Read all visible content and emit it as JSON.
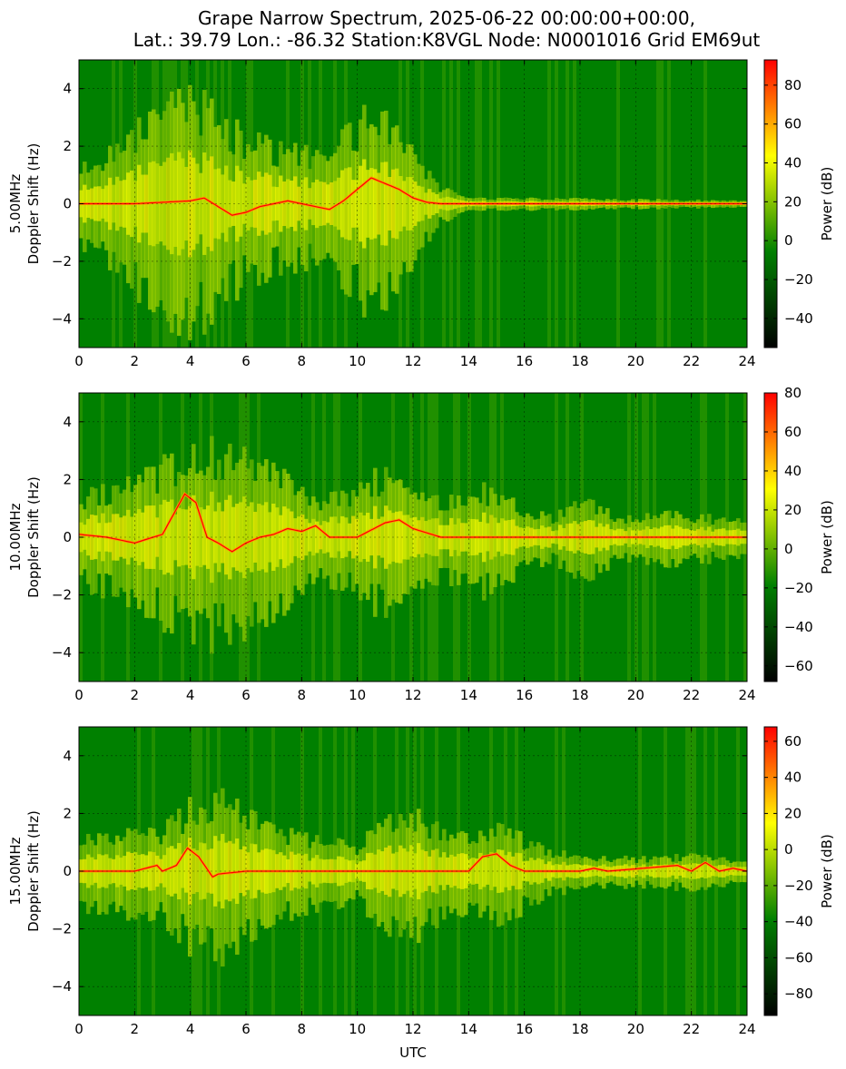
{
  "title_line1": "Grape Narrow Spectrum, 2025-06-22 00:00:00+00:00,",
  "title_line2": "Lat.: 39.79 Lon.: -86.32 Station:K8VGL Node: N0001016 Grid EM69ut",
  "chart_data": [
    {
      "type": "heatmap",
      "band_label": "5.00MHz",
      "ylabel": "Doppler Shift (Hz)",
      "xlabel": "",
      "xlim": [
        0,
        24
      ],
      "ylim": [
        -5,
        5
      ],
      "x_ticks": [
        0,
        2,
        4,
        6,
        8,
        10,
        12,
        14,
        16,
        18,
        20,
        22,
        24
      ],
      "y_ticks": [
        -4,
        -2,
        0,
        2,
        4
      ],
      "grid": true,
      "colorbar": {
        "label": "Power (dB)",
        "range": [
          -55,
          93
        ],
        "ticks": [
          -40,
          -20,
          0,
          20,
          40,
          60,
          80
        ]
      },
      "colormap": [
        "#000000",
        "#008000",
        "#ffff00",
        "#ff0000"
      ],
      "signal_trace": [
        [
          0,
          0
        ],
        [
          1,
          0
        ],
        [
          2,
          0
        ],
        [
          3,
          0.05
        ],
        [
          4,
          0.1
        ],
        [
          4.5,
          0.2
        ],
        [
          5,
          -0.1
        ],
        [
          5.5,
          -0.4
        ],
        [
          6,
          -0.3
        ],
        [
          6.5,
          -0.1
        ],
        [
          7,
          0
        ],
        [
          7.5,
          0.1
        ],
        [
          8,
          0
        ],
        [
          8.5,
          -0.1
        ],
        [
          9,
          -0.2
        ],
        [
          9.5,
          0.1
        ],
        [
          10,
          0.5
        ],
        [
          10.5,
          0.9
        ],
        [
          11,
          0.7
        ],
        [
          11.5,
          0.5
        ],
        [
          12,
          0.2
        ],
        [
          12.5,
          0.05
        ],
        [
          13,
          0
        ],
        [
          24,
          0
        ]
      ],
      "spread_envelope": [
        [
          0,
          1.2
        ],
        [
          2,
          2.2
        ],
        [
          3,
          3.0
        ],
        [
          4,
          3.6
        ],
        [
          5,
          2.8
        ],
        [
          6,
          2.0
        ],
        [
          7,
          1.8
        ],
        [
          8,
          1.6
        ],
        [
          9,
          1.5
        ],
        [
          10,
          2.6
        ],
        [
          11,
          3.0
        ],
        [
          12,
          1.5
        ],
        [
          13,
          0.5
        ],
        [
          14,
          0.2
        ],
        [
          24,
          0.1
        ]
      ]
    },
    {
      "type": "heatmap",
      "band_label": "10.00MHz",
      "ylabel": "Doppler Shift (Hz)",
      "xlabel": "",
      "xlim": [
        0,
        24
      ],
      "ylim": [
        -5,
        5
      ],
      "x_ticks": [
        0,
        2,
        4,
        6,
        8,
        10,
        12,
        14,
        16,
        18,
        20,
        22,
        24
      ],
      "y_ticks": [
        -4,
        -2,
        0,
        2,
        4
      ],
      "grid": true,
      "colorbar": {
        "label": "Power (dB)",
        "range": [
          -68,
          80
        ],
        "ticks": [
          -60,
          -40,
          -20,
          0,
          20,
          40,
          60,
          80
        ]
      },
      "colormap": [
        "#000000",
        "#008000",
        "#ffff00",
        "#ff0000"
      ],
      "signal_trace": [
        [
          0,
          0.1
        ],
        [
          1,
          0
        ],
        [
          2,
          -0.2
        ],
        [
          3,
          0.1
        ],
        [
          3.8,
          1.5
        ],
        [
          4.2,
          1.2
        ],
        [
          4.6,
          0
        ],
        [
          5,
          -0.2
        ],
        [
          5.5,
          -0.5
        ],
        [
          6,
          -0.2
        ],
        [
          6.5,
          0
        ],
        [
          7,
          0.1
        ],
        [
          7.5,
          0.3
        ],
        [
          8,
          0.2
        ],
        [
          8.5,
          0.4
        ],
        [
          9,
          0
        ],
        [
          10,
          0
        ],
        [
          11,
          0.5
        ],
        [
          11.5,
          0.6
        ],
        [
          12,
          0.3
        ],
        [
          13,
          0
        ],
        [
          24,
          0
        ]
      ],
      "spread_envelope": [
        [
          0,
          1.3
        ],
        [
          2,
          1.8
        ],
        [
          3,
          2.2
        ],
        [
          4,
          2.6
        ],
        [
          5,
          2.8
        ],
        [
          6,
          2.6
        ],
        [
          7,
          2.0
        ],
        [
          8,
          1.6
        ],
        [
          9,
          1.2
        ],
        [
          10,
          1.4
        ],
        [
          11,
          2.2
        ],
        [
          12,
          1.6
        ],
        [
          13,
          1.2
        ],
        [
          14,
          1.6
        ],
        [
          15,
          1.4
        ],
        [
          16,
          0.9
        ],
        [
          17,
          0.6
        ],
        [
          18,
          1.2
        ],
        [
          19,
          0.8
        ],
        [
          20,
          0.6
        ],
        [
          21,
          0.8
        ],
        [
          22,
          0.7
        ],
        [
          23,
          0.6
        ],
        [
          24,
          0.5
        ]
      ]
    },
    {
      "type": "heatmap",
      "band_label": "15.00MHz",
      "ylabel": "Doppler Shift (Hz)",
      "xlabel": "UTC",
      "xlim": [
        0,
        24
      ],
      "ylim": [
        -5,
        5
      ],
      "x_ticks": [
        0,
        2,
        4,
        6,
        8,
        10,
        12,
        14,
        16,
        18,
        20,
        22,
        24
      ],
      "y_ticks": [
        -4,
        -2,
        0,
        2,
        4
      ],
      "grid": true,
      "colorbar": {
        "label": "Power (dB)",
        "range": [
          -92,
          68
        ],
        "ticks": [
          -80,
          -60,
          -40,
          -20,
          0,
          20,
          40,
          60
        ]
      },
      "colormap": [
        "#000000",
        "#008000",
        "#ffff00",
        "#ff0000"
      ],
      "signal_trace": [
        [
          0,
          0
        ],
        [
          1,
          0
        ],
        [
          2,
          0
        ],
        [
          2.8,
          0.2
        ],
        [
          3,
          0
        ],
        [
          3.5,
          0.2
        ],
        [
          3.9,
          0.8
        ],
        [
          4.3,
          0.5
        ],
        [
          4.8,
          -0.2
        ],
        [
          5,
          -0.1
        ],
        [
          6,
          0
        ],
        [
          14,
          0
        ],
        [
          14.5,
          0.5
        ],
        [
          15,
          0.6
        ],
        [
          15.5,
          0.2
        ],
        [
          16,
          0
        ],
        [
          18,
          0
        ],
        [
          18.5,
          0.1
        ],
        [
          19,
          0
        ],
        [
          21.5,
          0.2
        ],
        [
          22,
          0
        ],
        [
          22.5,
          0.3
        ],
        [
          23,
          0
        ],
        [
          23.5,
          0.1
        ],
        [
          24,
          0
        ]
      ],
      "spread_envelope": [
        [
          0,
          1.0
        ],
        [
          2,
          1.2
        ],
        [
          3,
          1.3
        ],
        [
          4,
          2.0
        ],
        [
          5,
          2.5
        ],
        [
          6,
          1.8
        ],
        [
          7,
          1.3
        ],
        [
          8,
          1.2
        ],
        [
          9,
          1.0
        ],
        [
          10,
          0.8
        ],
        [
          11,
          1.6
        ],
        [
          12,
          1.8
        ],
        [
          13,
          1.4
        ],
        [
          14,
          1.2
        ],
        [
          15,
          1.5
        ],
        [
          16,
          1.0
        ],
        [
          17,
          0.6
        ],
        [
          18,
          0.5
        ],
        [
          20,
          0.4
        ],
        [
          22,
          0.5
        ],
        [
          24,
          0.3
        ]
      ]
    }
  ]
}
